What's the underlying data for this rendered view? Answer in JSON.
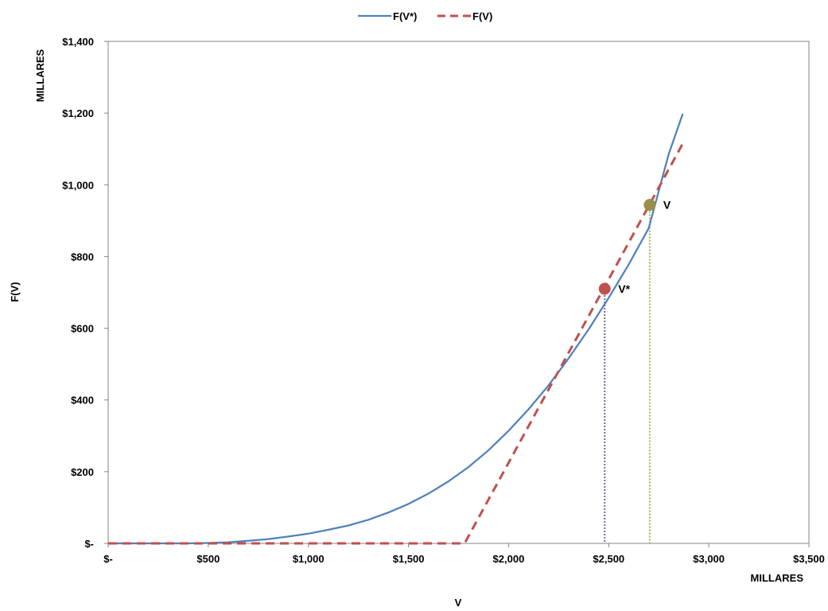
{
  "chart_data": {
    "type": "line",
    "title": "",
    "xlabel": "V",
    "ylabel": "F(V)",
    "x_units": "MILLARES",
    "y_units": "MILLARES",
    "xlim": [
      0,
      3500
    ],
    "ylim": [
      0,
      1400
    ],
    "x_ticks": [
      0,
      500,
      1000,
      1500,
      2000,
      2500,
      3000,
      3500
    ],
    "x_tick_labels": [
      "$-",
      "$500",
      "$1,000",
      "$1,500",
      "$2,000",
      "$2,500",
      "$3,000",
      "$3,500"
    ],
    "y_ticks": [
      0,
      200,
      400,
      600,
      800,
      1000,
      1200,
      1400
    ],
    "y_tick_labels": [
      "$-",
      "$200",
      "$400",
      "$600",
      "$800",
      "$1,000",
      "$1,200",
      "$1,400"
    ],
    "grid": false,
    "legend_position": "top-center",
    "series": [
      {
        "name": "F(V*)",
        "color": "#4f81bd",
        "style": "solid",
        "x": [
          0,
          400,
          500,
          600,
          700,
          800,
          900,
          1000,
          1100,
          1200,
          1300,
          1400,
          1500,
          1600,
          1700,
          1800,
          1900,
          2000,
          2100,
          2200,
          2300,
          2400,
          2500,
          2600,
          2700,
          2800,
          2870
        ],
        "y": [
          0,
          0,
          1,
          3,
          7,
          12,
          19,
          27,
          38,
          50,
          66,
          86,
          110,
          139,
          173,
          213,
          260,
          314,
          374,
          441,
          516,
          597,
          685,
          778,
          879,
          1086,
          1198
        ]
      },
      {
        "name": "F(V)",
        "color": "#c0504d",
        "style": "dashed",
        "x": [
          0,
          1780,
          2870
        ],
        "y": [
          0,
          0,
          1115
        ]
      }
    ],
    "markers": [
      {
        "label": "V*",
        "x": 2480,
        "y": 710,
        "color": "#c0504d",
        "drop_line_color": "#8064a2"
      },
      {
        "label": "V",
        "x": 2705,
        "y": 944,
        "color": "#9b8e48",
        "drop_line_color": "#9bbb59"
      }
    ]
  }
}
